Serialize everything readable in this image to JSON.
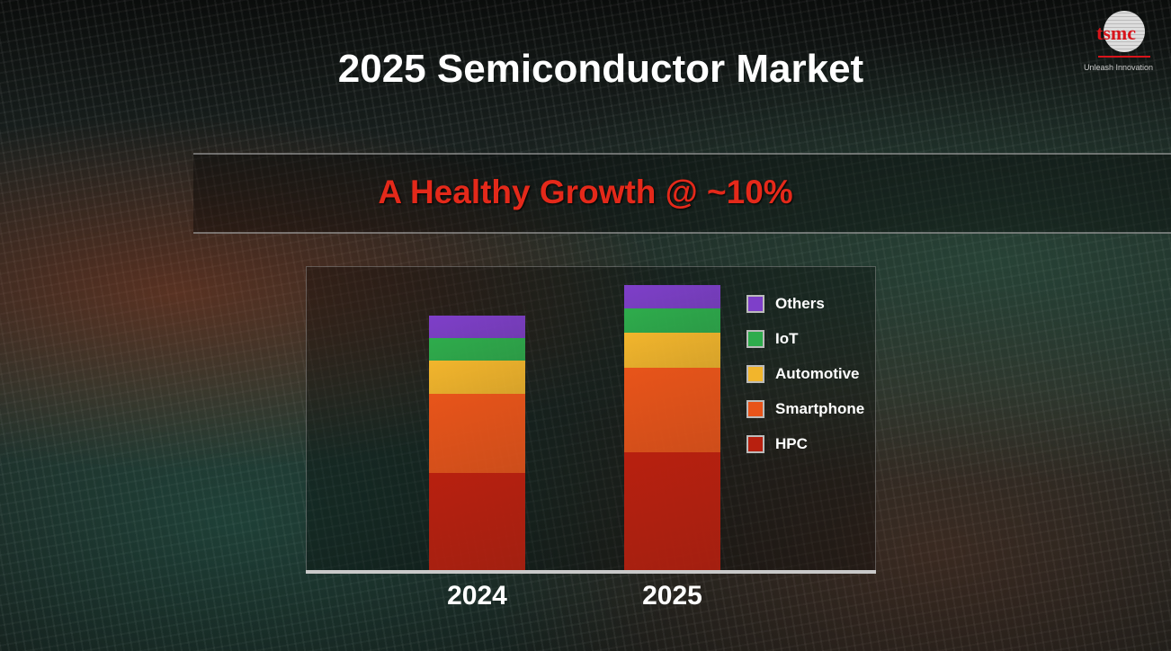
{
  "slide": {
    "title": "2025 Semiconductor Market",
    "subtitle": "A Healthy Growth @ ~10%",
    "logo": {
      "text": "tsmc",
      "tagline": "Unleash Innovation",
      "color": "#d8141b"
    }
  },
  "chart_data": {
    "type": "bar",
    "stacked": true,
    "categories": [
      "2024",
      "2025"
    ],
    "series": [
      {
        "name": "HPC",
        "values": [
          108,
          131
        ],
        "color": "#b8200f"
      },
      {
        "name": "Smartphone",
        "values": [
          88,
          94
        ],
        "color": "#e8541a"
      },
      {
        "name": "Automotive",
        "values": [
          37,
          39
        ],
        "color": "#f2b52c"
      },
      {
        "name": "IoT",
        "values": [
          25,
          27
        ],
        "color": "#2eac4c"
      },
      {
        "name": "Others",
        "values": [
          25,
          26
        ],
        "color": "#7e3fc9"
      }
    ],
    "legend_order": [
      "Others",
      "IoT",
      "Automotive",
      "Smartphone",
      "HPC"
    ],
    "ylim": [
      0,
      338
    ],
    "y_axis_shown": false,
    "grid": false,
    "legend_placement": "right",
    "title": "",
    "xlabel": "",
    "ylabel": ""
  }
}
